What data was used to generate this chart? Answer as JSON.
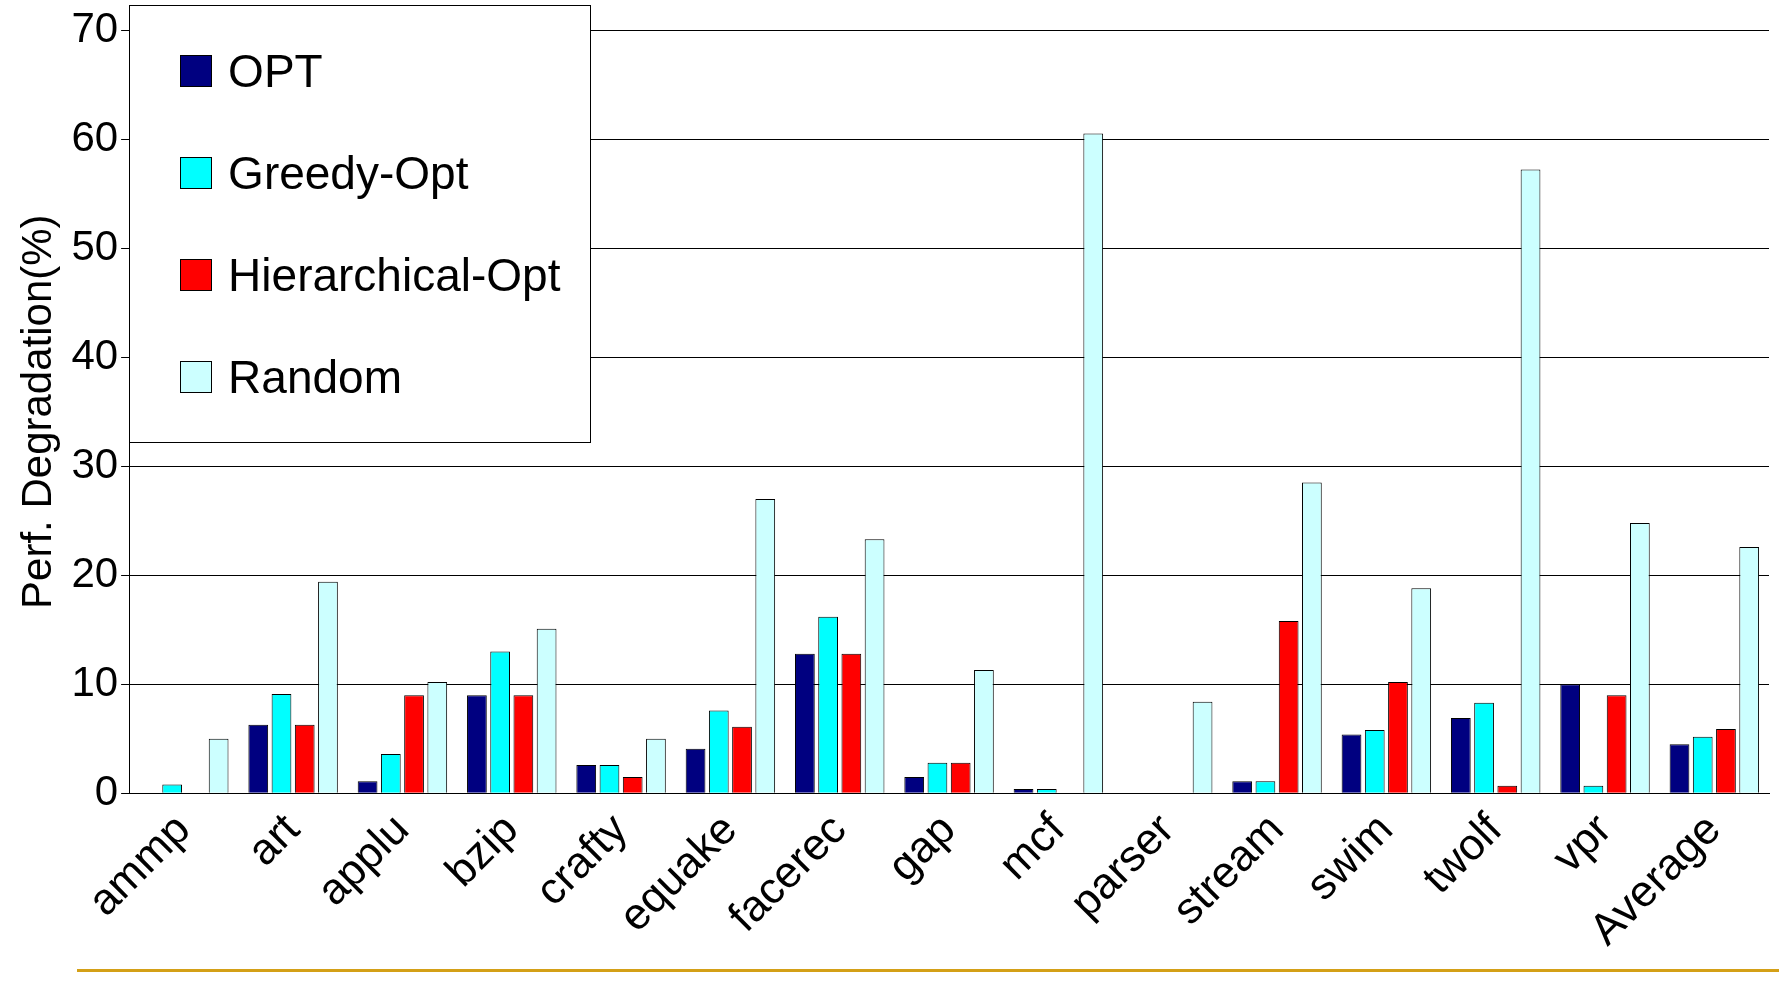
{
  "chart_data": {
    "type": "bar",
    "ylabel": "Perf. Degradation(%)",
    "categories": [
      "ammp",
      "art",
      "applu",
      "bzip",
      "crafty",
      "equake",
      "facerec",
      "gap",
      "mcf",
      "parser",
      "stream",
      "swim",
      "twolf",
      "vpr",
      "Average"
    ],
    "series": [
      {
        "name": "OPT",
        "color": "#000080",
        "values": [
          0,
          6.3,
          1.1,
          9.0,
          2.6,
          4.1,
          12.8,
          1.5,
          0.4,
          0,
          1.1,
          5.4,
          6.9,
          10.0,
          4.5
        ]
      },
      {
        "name": "Greedy-Opt",
        "color": "#00ffff",
        "values": [
          0.8,
          9.1,
          3.6,
          13.0,
          2.6,
          7.6,
          16.2,
          2.8,
          0.4,
          0,
          1.1,
          5.8,
          8.3,
          0.7,
          5.2
        ]
      },
      {
        "name": "Hierarchical-Opt",
        "color": "#ff0000",
        "values": [
          0,
          6.3,
          9.0,
          9.0,
          1.5,
          6.1,
          12.8,
          2.8,
          0,
          0,
          15.8,
          10.2,
          0.7,
          9.0,
          5.9
        ]
      },
      {
        "name": "Random",
        "color": "#ccffff",
        "values": [
          5.0,
          19.4,
          10.2,
          15.1,
          5.0,
          27.0,
          23.3,
          11.3,
          60.5,
          8.4,
          28.5,
          18.8,
          57.2,
          24.8,
          22.6
        ]
      }
    ],
    "ylim": [
      0,
      70
    ],
    "yticks": [
      0,
      10,
      20,
      30,
      40,
      50,
      60,
      70
    ],
    "grid": "y",
    "legend": "top left"
  }
}
